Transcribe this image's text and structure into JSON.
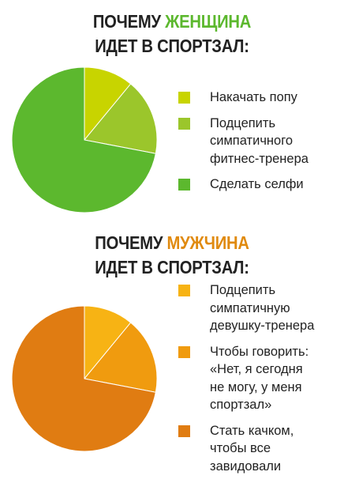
{
  "chart_data": [
    {
      "type": "pie",
      "title_lines": [
        "ПОЧЕМУ",
        "ЖЕНЩИНА",
        "ИДЕТ В СПОРТЗАЛ:"
      ],
      "title_highlight_color": "#5cb82e",
      "slices": [
        {
          "label_lines": [
            "Накачать попу"
          ],
          "value": 11,
          "color": "#c8d400"
        },
        {
          "label_lines": [
            "Подцепить",
            "симпатичного",
            "фитнес-тренера"
          ],
          "value": 17,
          "color": "#9bc62b"
        },
        {
          "label_lines": [
            "Сделать селфи"
          ],
          "value": 72,
          "color": "#5cb82e"
        }
      ]
    },
    {
      "type": "pie",
      "title_lines": [
        "ПОЧЕМУ",
        "МУЖЧИНА",
        "ИДЕТ В СПОРТЗАЛ:"
      ],
      "title_highlight_color": "#e08a0f",
      "slices": [
        {
          "label_lines": [
            "Подцепить",
            "симпатичную",
            "девушку-тренера"
          ],
          "value": 11,
          "color": "#f7b314"
        },
        {
          "label_lines": [
            "Чтобы говорить:",
            "«Нет, я сегодня",
            "не могу, у меня",
            "спортзал»"
          ],
          "value": 17,
          "color": "#f09b0f"
        },
        {
          "label_lines": [
            "Стать качком,",
            "чтобы все",
            "завидовали"
          ],
          "value": 72,
          "color": "#e07c12"
        }
      ]
    }
  ]
}
